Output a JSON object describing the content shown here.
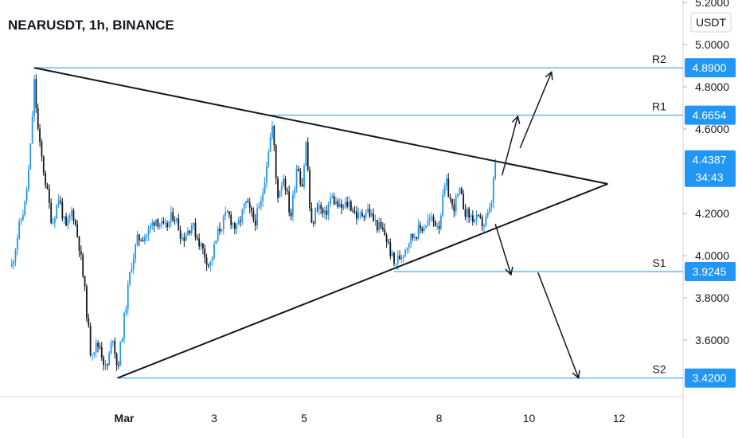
{
  "chart_data": {
    "type": "candlestick",
    "title": "NEARUSDT, 1h, BINANCE",
    "currency": "USDT",
    "ylim": [
      3.3,
      5.25
    ],
    "yticks": [
      "5.2000",
      "5.0000",
      "4.8000",
      "4.6000",
      "4.2000",
      "4.0000",
      "3.8000",
      "3.6000"
    ],
    "xticks": [
      {
        "label": "Mar",
        "day": 1
      },
      {
        "label": "3",
        "day": 3
      },
      {
        "label": "5",
        "day": 5
      },
      {
        "label": "8",
        "day": 8
      },
      {
        "label": "10",
        "day": 10
      },
      {
        "label": "12",
        "day": 12
      }
    ],
    "current_price": {
      "value": "4.4387",
      "countdown": "34:43"
    },
    "levels": [
      {
        "name": "R2",
        "value": "4.8900",
        "y": 4.89,
        "x_start": -1.0
      },
      {
        "name": "R1",
        "value": "4.6654",
        "y": 4.6654,
        "x_start": 4.25
      },
      {
        "name": "S1",
        "value": "3.9245",
        "y": 3.9245,
        "x_start": 7.0
      },
      {
        "name": "S2",
        "value": "3.4200",
        "y": 3.42,
        "x_start": 0.85
      }
    ],
    "triangle": {
      "upper": [
        [
          -1.0,
          4.89
        ],
        [
          11.75,
          4.34
        ]
      ],
      "lower": [
        [
          0.85,
          3.42
        ],
        [
          11.75,
          4.34
        ]
      ]
    },
    "arrows": [
      {
        "from": [
          9.4,
          4.38
        ],
        "to": [
          9.75,
          4.66
        ]
      },
      {
        "from": [
          9.8,
          4.51
        ],
        "to": [
          10.5,
          4.87
        ]
      },
      {
        "from": [
          9.25,
          4.15
        ],
        "to": [
          9.6,
          3.91
        ]
      },
      {
        "from": [
          10.2,
          3.92
        ],
        "to": [
          11.1,
          3.42
        ]
      }
    ],
    "price_path": [
      [
        -1.5,
        3.95
      ],
      [
        -1.35,
        4.12
      ],
      [
        -1.2,
        4.25
      ],
      [
        -1.1,
        4.45
      ],
      [
        -1.0,
        4.82
      ],
      [
        -0.9,
        4.55
      ],
      [
        -0.75,
        4.35
      ],
      [
        -0.6,
        4.15
      ],
      [
        -0.45,
        4.28
      ],
      [
        -0.3,
        4.12
      ],
      [
        -0.15,
        4.22
      ],
      [
        0.0,
        4.05
      ],
      [
        0.1,
        3.88
      ],
      [
        0.25,
        3.55
      ],
      [
        0.45,
        3.58
      ],
      [
        0.6,
        3.45
      ],
      [
        0.75,
        3.62
      ],
      [
        0.85,
        3.46
      ],
      [
        1.0,
        3.7
      ],
      [
        1.15,
        3.95
      ],
      [
        1.3,
        4.08
      ],
      [
        1.5,
        4.1
      ],
      [
        1.7,
        4.18
      ],
      [
        1.9,
        4.12
      ],
      [
        2.1,
        4.2
      ],
      [
        2.3,
        4.08
      ],
      [
        2.5,
        4.15
      ],
      [
        2.7,
        4.05
      ],
      [
        2.9,
        3.95
      ],
      [
        3.1,
        4.12
      ],
      [
        3.3,
        4.2
      ],
      [
        3.5,
        4.12
      ],
      [
        3.7,
        4.25
      ],
      [
        3.9,
        4.16
      ],
      [
        4.05,
        4.25
      ],
      [
        4.2,
        4.5
      ],
      [
        4.3,
        4.62
      ],
      [
        4.4,
        4.28
      ],
      [
        4.55,
        4.38
      ],
      [
        4.7,
        4.18
      ],
      [
        4.85,
        4.45
      ],
      [
        4.95,
        4.32
      ],
      [
        5.05,
        4.55
      ],
      [
        5.15,
        4.12
      ],
      [
        5.3,
        4.25
      ],
      [
        5.45,
        4.18
      ],
      [
        5.6,
        4.28
      ],
      [
        5.8,
        4.22
      ],
      [
        6.0,
        4.25
      ],
      [
        6.2,
        4.18
      ],
      [
        6.4,
        4.22
      ],
      [
        6.6,
        4.15
      ],
      [
        6.8,
        4.1
      ],
      [
        7.0,
        3.96
      ],
      [
        7.15,
        4.0
      ],
      [
        7.35,
        4.08
      ],
      [
        7.6,
        4.13
      ],
      [
        7.8,
        4.17
      ],
      [
        8.0,
        4.15
      ],
      [
        8.15,
        4.35
      ],
      [
        8.3,
        4.22
      ],
      [
        8.45,
        4.3
      ],
      [
        8.6,
        4.2
      ],
      [
        8.8,
        4.17
      ],
      [
        9.0,
        4.15
      ],
      [
        9.15,
        4.22
      ],
      [
        9.25,
        4.44
      ]
    ]
  }
}
